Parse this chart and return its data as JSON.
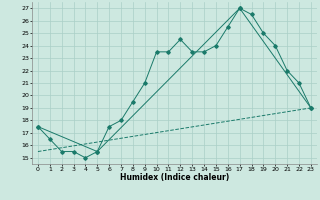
{
  "xlabel": "Humidex (Indice chaleur)",
  "xlim": [
    -0.5,
    23.5
  ],
  "ylim": [
    14.5,
    27.5
  ],
  "yticks": [
    15,
    16,
    17,
    18,
    19,
    20,
    21,
    22,
    23,
    24,
    25,
    26,
    27
  ],
  "xticks": [
    0,
    1,
    2,
    3,
    4,
    5,
    6,
    7,
    8,
    9,
    10,
    11,
    12,
    13,
    14,
    15,
    16,
    17,
    18,
    19,
    20,
    21,
    22,
    23
  ],
  "bg_color": "#cde8e0",
  "line_color": "#1a7a6a",
  "grid_color": "#aacfc7",
  "hourly_x": [
    0,
    1,
    2,
    3,
    4,
    5,
    6,
    7,
    8,
    9,
    10,
    11,
    12,
    13,
    14,
    15,
    16,
    17,
    18,
    19,
    20,
    21,
    22,
    23
  ],
  "hourly_y": [
    17.5,
    16.5,
    15.5,
    15.5,
    15.0,
    15.5,
    17.5,
    18.0,
    19.5,
    21.0,
    23.5,
    23.5,
    24.5,
    23.5,
    23.5,
    24.0,
    25.5,
    27.0,
    26.5,
    25.0,
    24.0,
    22.0,
    21.0,
    19.0
  ],
  "line2_x": [
    0,
    5,
    17,
    23
  ],
  "line2_y": [
    17.5,
    15.5,
    27.0,
    19.0
  ],
  "line3_x": [
    0,
    23
  ],
  "line3_y": [
    15.5,
    19.0
  ]
}
